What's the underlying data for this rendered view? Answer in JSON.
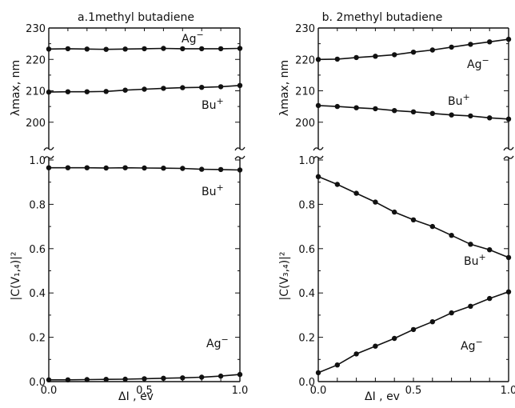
{
  "chart_data": [
    {
      "type": "line",
      "title": "a.1methyl butadiene",
      "xlabel": "ΔI , ev",
      "x_ticks": [
        "0.0",
        "0.5",
        "1.0"
      ],
      "x_tick_values": [
        0,
        0.5,
        1.0
      ],
      "xlim": [
        0,
        1.0
      ],
      "axis_break": true,
      "top": {
        "ylabel": "λmax, nm",
        "ylim": [
          190,
          230
        ],
        "y_ticks": [
          "200",
          "210",
          "220",
          "230"
        ],
        "y_tick_values": [
          200,
          210,
          220,
          230
        ],
        "series": [
          {
            "name": "Ag⁻",
            "x": [
              0,
              0.1,
              0.2,
              0.3,
              0.4,
              0.5,
              0.6,
              0.7,
              0.8,
              0.9,
              1.0
            ],
            "values": [
              223.3,
              223.4,
              223.3,
              223.2,
              223.3,
              223.4,
              223.5,
              223.4,
              223.4,
              223.4,
              223.5
            ]
          },
          {
            "name": "Bu⁺",
            "x": [
              0,
              0.1,
              0.2,
              0.3,
              0.4,
              0.5,
              0.6,
              0.7,
              0.8,
              0.9,
              1.0
            ],
            "values": [
              209.6,
              209.7,
              209.7,
              209.8,
              210.2,
              210.5,
              210.8,
              211.0,
              211.1,
              211.3,
              211.7
            ]
          }
        ]
      },
      "bottom": {
        "ylabel": "|C(V₁,₄)|²",
        "ylim": [
          0,
          1.0
        ],
        "y_ticks": [
          "0.0",
          "0.2",
          "0.4",
          "0.6",
          "0.8",
          "1.0"
        ],
        "y_tick_values": [
          0,
          0.2,
          0.4,
          0.6,
          0.8,
          1.0
        ],
        "series": [
          {
            "name": "Bu⁺",
            "x": [
              0,
              0.1,
              0.2,
              0.3,
              0.4,
              0.5,
              0.6,
              0.7,
              0.8,
              0.9,
              1.0
            ],
            "values": [
              0.965,
              0.965,
              0.965,
              0.964,
              0.965,
              0.964,
              0.963,
              0.962,
              0.958,
              0.957,
              0.955
            ]
          },
          {
            "name": "Ag⁻",
            "x": [
              0,
              0.1,
              0.2,
              0.3,
              0.4,
              0.5,
              0.6,
              0.7,
              0.8,
              0.9,
              1.0
            ],
            "values": [
              0.008,
              0.008,
              0.009,
              0.01,
              0.011,
              0.013,
              0.015,
              0.017,
              0.02,
              0.025,
              0.032
            ]
          }
        ]
      }
    },
    {
      "type": "line",
      "title": "b. 2methyl butadiene",
      "xlabel": "ΔI , ev",
      "x_ticks": [
        "0.0",
        "0.5",
        "1.0"
      ],
      "x_tick_values": [
        0,
        0.5,
        1.0
      ],
      "xlim": [
        0,
        1.0
      ],
      "axis_break": true,
      "top": {
        "ylabel": "λmax, nm",
        "ylim": [
          190,
          230
        ],
        "y_ticks": [
          "200",
          "210",
          "220",
          "230"
        ],
        "y_tick_values": [
          200,
          210,
          220,
          230
        ],
        "series": [
          {
            "name": "Ag⁻",
            "x": [
              0,
              0.1,
              0.2,
              0.3,
              0.4,
              0.5,
              0.6,
              0.7,
              0.8,
              0.9,
              1.0
            ],
            "values": [
              220.0,
              220.1,
              220.6,
              221.0,
              221.5,
              222.3,
              223.0,
              223.9,
              224.8,
              225.6,
              226.4
            ]
          },
          {
            "name": "Bu⁺",
            "x": [
              0,
              0.1,
              0.2,
              0.3,
              0.4,
              0.5,
              0.6,
              0.7,
              0.8,
              0.9,
              1.0
            ],
            "values": [
              205.3,
              205.0,
              204.6,
              204.3,
              203.7,
              203.3,
              202.8,
              202.3,
              202.0,
              201.4,
              201.0
            ]
          }
        ]
      },
      "bottom": {
        "ylabel": "|C(V₃,₄)|²",
        "ylim": [
          0,
          1.0
        ],
        "y_ticks": [
          "0.0",
          "0.2",
          "0.4",
          "0.6",
          "0.8",
          "1.0"
        ],
        "y_tick_values": [
          0,
          0.2,
          0.4,
          0.6,
          0.8,
          1.0
        ],
        "series": [
          {
            "name": "Bu⁺",
            "x": [
              0,
              0.1,
              0.2,
              0.3,
              0.4,
              0.5,
              0.6,
              0.7,
              0.8,
              0.9,
              1.0
            ],
            "values": [
              0.925,
              0.89,
              0.85,
              0.81,
              0.765,
              0.73,
              0.7,
              0.66,
              0.62,
              0.595,
              0.56
            ]
          },
          {
            "name": "Ag⁻",
            "x": [
              0,
              0.1,
              0.2,
              0.3,
              0.4,
              0.5,
              0.6,
              0.7,
              0.8,
              0.9,
              1.0
            ],
            "values": [
              0.04,
              0.075,
              0.125,
              0.16,
              0.195,
              0.235,
              0.27,
              0.31,
              0.34,
              0.375,
              0.405
            ]
          }
        ]
      }
    }
  ]
}
